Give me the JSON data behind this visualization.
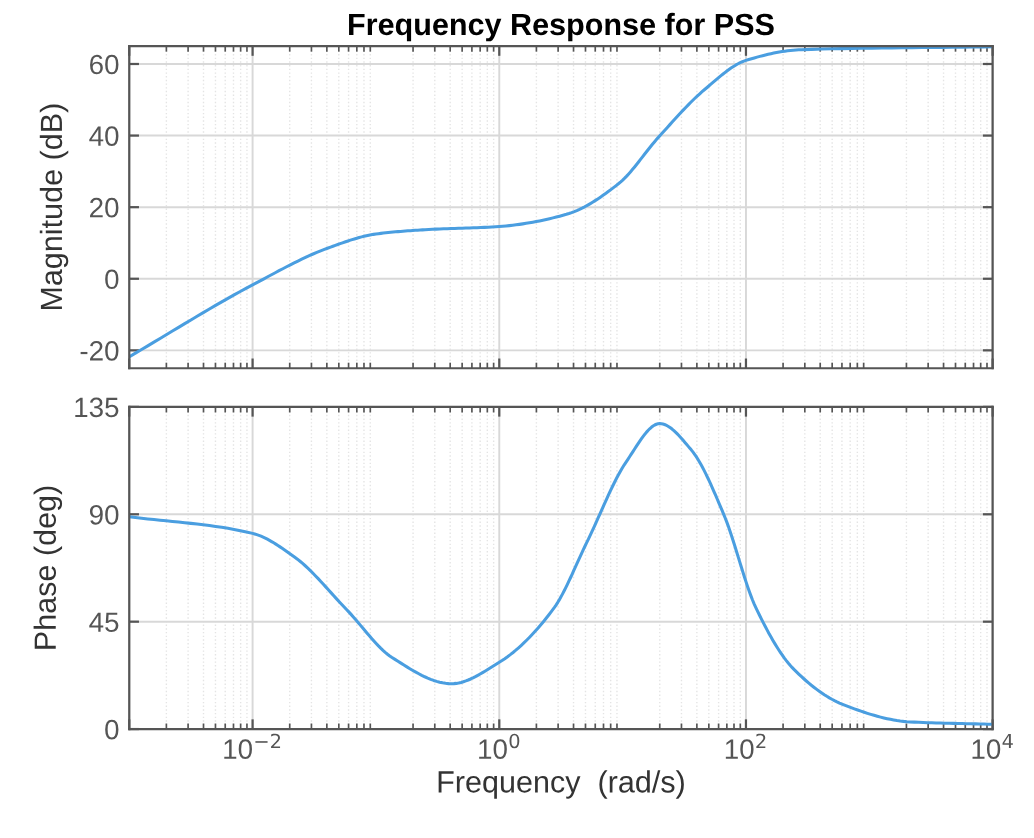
{
  "chart_data": [
    {
      "type": "line",
      "title": "Frequency Response for PSS",
      "ylabel": "Magnitude (dB)",
      "log": "x",
      "grid": true,
      "tick_labels": "y",
      "xlim": [
        0.001,
        10000
      ],
      "xticks": [
        {
          "value": 0.001,
          "label": null
        },
        {
          "value": 0.01,
          "label": null
        },
        {
          "value": 1,
          "label": null
        },
        {
          "value": 100,
          "label": null
        },
        {
          "value": 10000,
          "label": null
        }
      ],
      "ylim": [
        -25,
        65
      ],
      "yticks": [
        -20,
        0,
        20,
        40,
        60
      ],
      "series": [
        {
          "color": "#4a9ee0",
          "x": [
            0.001,
            0.01,
            0.041,
            0.1,
            0.25,
            1,
            3.5,
            9.3,
            19.5,
            46,
            100,
            282,
            10000
          ],
          "values": [
            -21.8,
            -1.7,
            8.6,
            12.5,
            13.7,
            14.6,
            18,
            26.6,
            39.5,
            52.8,
            61,
            64,
            64.8
          ]
        }
      ]
    },
    {
      "type": "line",
      "xlabel": "Frequency  (rad/s)",
      "ylabel": "Phase (deg)",
      "log": "x",
      "grid": true,
      "xlim": [
        0.001,
        10000
      ],
      "xticks": [
        {
          "value": 0.001,
          "label": null
        },
        {
          "value": 0.01,
          "label": "10$^{−2}$"
        },
        {
          "value": 1,
          "label": "10$^{0}$"
        },
        {
          "value": 100,
          "label": "10$^{2}$"
        },
        {
          "value": 10000,
          "label": "10$^{4}$"
        }
      ],
      "ylim": [
        0,
        135
      ],
      "yticks": [
        0,
        45,
        90,
        135
      ],
      "series": [
        {
          "color": "#4a9ee0",
          "x": [
            0.001,
            0.01,
            0.022,
            0.058,
            0.135,
            0.41,
            1,
            2.8,
            5.1,
            10.7,
            20,
            36,
            66,
            120,
            245,
            630,
            2140,
            10000
          ],
          "values": [
            89,
            82,
            72,
            50,
            30,
            19,
            28,
            51,
            78,
            112,
            128,
            117,
            90,
            51,
            25,
            10,
            3,
            2
          ]
        }
      ]
    }
  ]
}
